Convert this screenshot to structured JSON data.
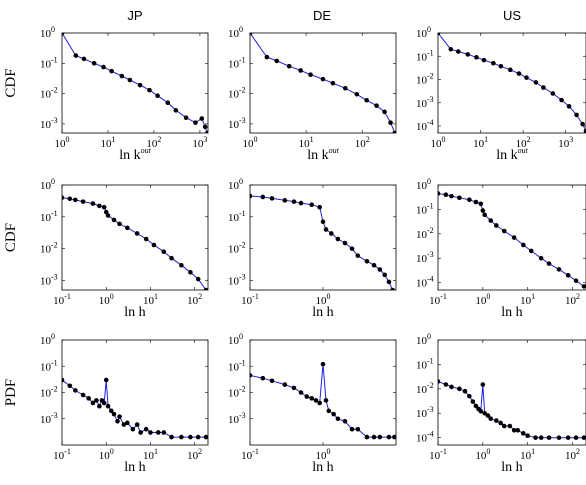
{
  "columns": [
    "JP",
    "DE",
    "US"
  ],
  "chart_data": [
    {
      "type": "line",
      "row": 0,
      "col": 0,
      "xscale": "log",
      "yscale": "log",
      "xlim": [
        1,
        1500
      ],
      "ylim": [
        0.0005,
        1
      ],
      "xticks": [
        1,
        10,
        100,
        1000
      ],
      "yticks": [
        0.001,
        0.01,
        0.1,
        1
      ],
      "ylabel": "CDF",
      "xlabel": "ln k",
      "xlabel_sup": "out",
      "series": [
        {
          "x": [
            1,
            2,
            3,
            5,
            8,
            12,
            20,
            30,
            50,
            80,
            120,
            200,
            300,
            500,
            800,
            1100,
            1300,
            1450
          ],
          "y": [
            1,
            0.18,
            0.14,
            0.1,
            0.075,
            0.055,
            0.038,
            0.028,
            0.019,
            0.013,
            0.0085,
            0.005,
            0.0028,
            0.0016,
            0.0011,
            0.0015,
            0.0008,
            0.0005
          ]
        }
      ]
    },
    {
      "type": "line",
      "row": 0,
      "col": 1,
      "xscale": "log",
      "yscale": "log",
      "xlim": [
        1,
        400
      ],
      "ylim": [
        0.0005,
        1
      ],
      "xticks": [
        1,
        10,
        100
      ],
      "yticks": [
        0.001,
        0.01,
        0.1,
        1
      ],
      "ylabel": "",
      "xlabel": "ln k",
      "xlabel_sup": "out",
      "series": [
        {
          "x": [
            1,
            2,
            3,
            5,
            8,
            12,
            20,
            30,
            50,
            80,
            120,
            180,
            250,
            320,
            380
          ],
          "y": [
            1,
            0.16,
            0.12,
            0.08,
            0.058,
            0.042,
            0.03,
            0.022,
            0.015,
            0.0095,
            0.006,
            0.004,
            0.0025,
            0.0011,
            0.0005
          ]
        }
      ]
    },
    {
      "type": "line",
      "row": 0,
      "col": 2,
      "xscale": "log",
      "yscale": "log",
      "xlim": [
        1,
        3000
      ],
      "ylim": [
        5e-05,
        1
      ],
      "xticks": [
        1,
        10,
        100,
        1000
      ],
      "yticks": [
        0.0001,
        0.001,
        0.01,
        0.1,
        1
      ],
      "ylabel": "",
      "xlabel": "ln k",
      "xlabel_sup": "out",
      "series": [
        {
          "x": [
            1,
            2,
            3,
            5,
            8,
            12,
            20,
            30,
            50,
            80,
            120,
            200,
            300,
            500,
            800,
            1200,
            1800,
            2500,
            3000
          ],
          "y": [
            1,
            0.2,
            0.16,
            0.12,
            0.09,
            0.068,
            0.05,
            0.037,
            0.026,
            0.018,
            0.012,
            0.0075,
            0.0045,
            0.0025,
            0.0013,
            0.0007,
            0.0003,
            0.00012,
            6e-05
          ]
        }
      ]
    },
    {
      "type": "line",
      "row": 1,
      "col": 0,
      "xscale": "log",
      "yscale": "log",
      "xlim": [
        0.1,
        200
      ],
      "ylim": [
        0.0005,
        1
      ],
      "xticks": [
        0.1,
        1,
        10,
        100
      ],
      "yticks": [
        0.001,
        0.01,
        0.1,
        1
      ],
      "ylabel": "CDF",
      "xlabel": "ln h",
      "series": [
        {
          "x": [
            0.1,
            0.15,
            0.2,
            0.3,
            0.5,
            0.7,
            0.9,
            1.0,
            1.1,
            1.5,
            2,
            3,
            5,
            8,
            12,
            20,
            30,
            50,
            80,
            120,
            180
          ],
          "y": [
            0.4,
            0.37,
            0.34,
            0.3,
            0.26,
            0.22,
            0.2,
            0.14,
            0.11,
            0.08,
            0.06,
            0.045,
            0.03,
            0.02,
            0.013,
            0.008,
            0.005,
            0.003,
            0.0018,
            0.0011,
            0.0005
          ]
        }
      ]
    },
    {
      "type": "line",
      "row": 1,
      "col": 1,
      "xscale": "log",
      "yscale": "log",
      "xlim": [
        0.1,
        10
      ],
      "ylim": [
        0.0005,
        1
      ],
      "xticks": [
        0.1,
        1
      ],
      "yticks": [
        0.001,
        0.01,
        0.1,
        1
      ],
      "ylabel": "",
      "xlabel": "ln h",
      "series": [
        {
          "x": [
            0.1,
            0.15,
            0.2,
            0.3,
            0.4,
            0.5,
            0.7,
            0.9,
            1.0,
            1.1,
            1.3,
            1.6,
            2,
            2.5,
            3,
            4,
            5,
            6,
            7,
            8,
            9
          ],
          "y": [
            0.45,
            0.42,
            0.38,
            0.33,
            0.3,
            0.27,
            0.24,
            0.2,
            0.07,
            0.04,
            0.03,
            0.02,
            0.015,
            0.01,
            0.006,
            0.004,
            0.003,
            0.0022,
            0.0015,
            0.0009,
            0.0005
          ]
        }
      ]
    },
    {
      "type": "line",
      "row": 1,
      "col": 2,
      "xscale": "log",
      "yscale": "log",
      "xlim": [
        0.1,
        200
      ],
      "ylim": [
        5e-05,
        1
      ],
      "xticks": [
        0.1,
        1,
        10,
        100
      ],
      "yticks": [
        0.0001,
        0.001,
        0.01,
        0.1,
        1
      ],
      "ylabel": "",
      "xlabel": "ln h",
      "series": [
        {
          "x": [
            0.1,
            0.15,
            0.2,
            0.3,
            0.5,
            0.7,
            0.9,
            1.0,
            1.1,
            1.5,
            2,
            3,
            5,
            8,
            12,
            20,
            30,
            50,
            80,
            120,
            180
          ],
          "y": [
            0.45,
            0.4,
            0.35,
            0.3,
            0.25,
            0.2,
            0.17,
            0.09,
            0.06,
            0.035,
            0.022,
            0.013,
            0.007,
            0.0035,
            0.002,
            0.001,
            0.0006,
            0.00035,
            0.0002,
            0.00012,
            7e-05
          ]
        }
      ]
    },
    {
      "type": "line",
      "row": 2,
      "col": 0,
      "xscale": "log",
      "yscale": "log",
      "xlim": [
        0.1,
        200
      ],
      "ylim": [
        0.0001,
        1
      ],
      "xticks": [
        0.1,
        1,
        10,
        100
      ],
      "yticks": [
        0.001,
        0.01,
        0.1,
        1
      ],
      "ylabel": "PDF",
      "xlabel": "ln h",
      "series": [
        {
          "x": [
            0.1,
            0.15,
            0.2,
            0.3,
            0.4,
            0.5,
            0.6,
            0.7,
            0.8,
            0.9,
            1.0,
            1.1,
            1.3,
            1.5,
            1.8,
            2,
            2.5,
            3,
            4,
            5,
            6,
            8,
            10,
            15,
            20,
            30,
            50,
            80,
            120,
            180
          ],
          "y": [
            0.03,
            0.018,
            0.012,
            0.008,
            0.006,
            0.004,
            0.005,
            0.003,
            0.005,
            0.004,
            0.03,
            0.003,
            0.002,
            0.0015,
            0.0008,
            0.0012,
            0.0006,
            0.0007,
            0.0004,
            0.0006,
            0.0003,
            0.0004,
            0.0003,
            0.0003,
            0.0003,
            0.0002,
            0.0002,
            0.0002,
            0.0002,
            0.0002
          ]
        }
      ]
    },
    {
      "type": "line",
      "row": 2,
      "col": 1,
      "xscale": "log",
      "yscale": "log",
      "xlim": [
        0.1,
        10
      ],
      "ylim": [
        0.0001,
        1
      ],
      "xticks": [
        0.1,
        1
      ],
      "yticks": [
        0.001,
        0.01,
        0.1,
        1
      ],
      "ylabel": "",
      "xlabel": "ln h",
      "series": [
        {
          "x": [
            0.1,
            0.15,
            0.2,
            0.3,
            0.4,
            0.5,
            0.6,
            0.7,
            0.8,
            0.9,
            1.0,
            1.1,
            1.2,
            1.4,
            1.6,
            2,
            2.5,
            3,
            4,
            5,
            6,
            8,
            9.5
          ],
          "y": [
            0.045,
            0.035,
            0.028,
            0.02,
            0.015,
            0.01,
            0.007,
            0.006,
            0.005,
            0.004,
            0.12,
            0.005,
            0.002,
            0.0015,
            0.001,
            0.0008,
            0.0004,
            0.0004,
            0.0002,
            0.0002,
            0.0002,
            0.0002,
            0.0002
          ]
        }
      ]
    },
    {
      "type": "line",
      "row": 2,
      "col": 2,
      "xscale": "log",
      "yscale": "log",
      "xlim": [
        0.1,
        200
      ],
      "ylim": [
        5e-05,
        1
      ],
      "xticks": [
        0.1,
        1,
        10,
        100
      ],
      "yticks": [
        0.0001,
        0.001,
        0.01,
        0.1,
        1
      ],
      "ylabel": "",
      "xlabel": "ln h",
      "series": [
        {
          "x": [
            0.1,
            0.15,
            0.2,
            0.3,
            0.4,
            0.5,
            0.6,
            0.7,
            0.8,
            0.9,
            1.0,
            1.1,
            1.3,
            1.5,
            2,
            2.5,
            3,
            4,
            5,
            6,
            8,
            10,
            15,
            20,
            30,
            50,
            80,
            120,
            180
          ],
          "y": [
            0.02,
            0.015,
            0.012,
            0.01,
            0.008,
            0.005,
            0.003,
            0.002,
            0.0015,
            0.0012,
            0.015,
            0.001,
            0.0008,
            0.0006,
            0.0005,
            0.0004,
            0.0003,
            0.0003,
            0.0002,
            0.0002,
            0.00015,
            0.00012,
            0.0001,
            0.0001,
            0.0001,
            0.0001,
            0.0001,
            0.0001,
            0.0001
          ]
        }
      ]
    }
  ]
}
